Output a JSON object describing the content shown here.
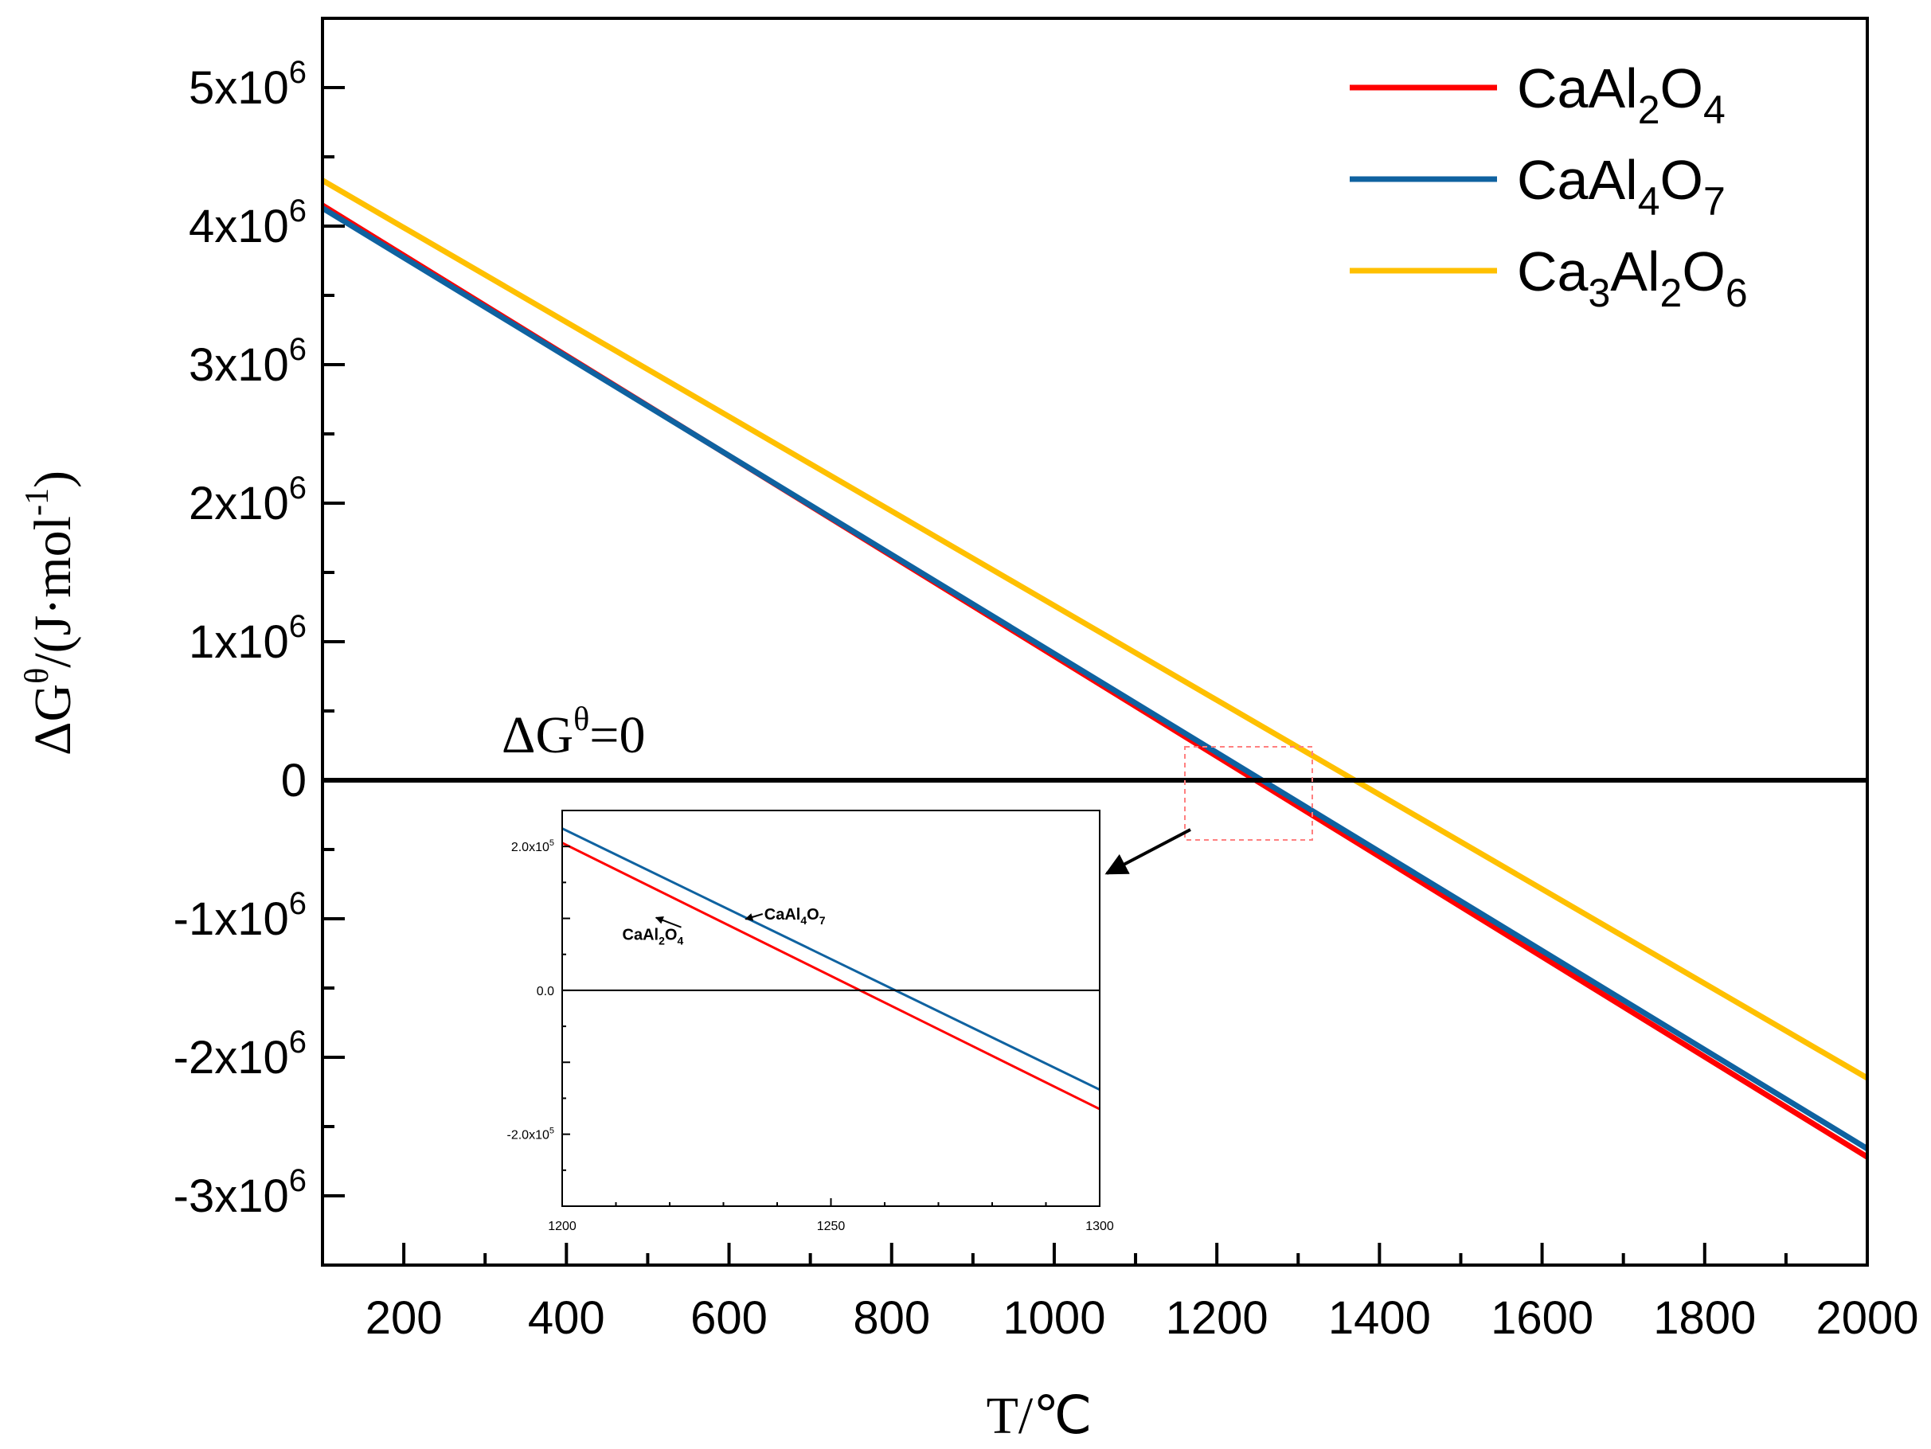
{
  "chart_data": [
    {
      "type": "line",
      "xlabel": "T/℃",
      "ylabel": "ΔG^θ/(J·mol^-1)",
      "xlim": [
        100,
        2000
      ],
      "ylim": [
        -3500000,
        5500000
      ],
      "xticks": [
        200,
        400,
        600,
        800,
        1000,
        1200,
        1400,
        1600,
        1800,
        2000
      ],
      "yticks": [
        {
          "value": 5000000,
          "mant": "5x10",
          "exp": "6"
        },
        {
          "value": 4000000,
          "mant": "4x10",
          "exp": "6"
        },
        {
          "value": 3000000,
          "mant": "3x10",
          "exp": "6"
        },
        {
          "value": 2000000,
          "mant": "2x10",
          "exp": "6"
        },
        {
          "value": 1000000,
          "mant": "1x10",
          "exp": "6"
        },
        {
          "value": 0,
          "mant": "0",
          "exp": ""
        },
        {
          "value": -1000000,
          "mant": "-1x10",
          "exp": "6"
        },
        {
          "value": -2000000,
          "mant": "-2x10",
          "exp": "6"
        },
        {
          "value": -3000000,
          "mant": "-3x10",
          "exp": "6"
        }
      ],
      "series": [
        {
          "name": "CaAl2O4",
          "label_parts": [
            [
              "CaAl",
              ""
            ],
            [
              "2",
              "sub"
            ],
            [
              "O",
              ""
            ],
            [
              "4",
              "sub"
            ]
          ],
          "color": "#ff0000",
          "x": [
            100,
            2000
          ],
          "y": [
            4150000,
            -2720000
          ]
        },
        {
          "name": "CaAl4O7",
          "label_parts": [
            [
              "CaAl",
              ""
            ],
            [
              "4",
              "sub"
            ],
            [
              "O",
              ""
            ],
            [
              "7",
              "sub"
            ]
          ],
          "color": "#0f62a0",
          "x": [
            100,
            2000
          ],
          "y": [
            4130000,
            -2660000
          ]
        },
        {
          "name": "Ca3Al2O6",
          "label_parts": [
            [
              "Ca",
              ""
            ],
            [
              "3",
              "sub"
            ],
            [
              "Al",
              ""
            ],
            [
              "2",
              "sub"
            ],
            [
              "O",
              ""
            ],
            [
              "6",
              "sub"
            ]
          ],
          "color": "#ffc000",
          "x": [
            100,
            2000
          ],
          "y": [
            4330000,
            -2150000
          ]
        }
      ],
      "reference_line": {
        "y": 0,
        "label_prefix": "ΔG",
        "label_sup": "θ",
        "label_suffix": "=0"
      },
      "legend": "top-right"
    },
    {
      "type": "line",
      "role": "inset",
      "xlim": [
        1200,
        1300
      ],
      "ylim": [
        -300000,
        250000
      ],
      "xticks": [
        {
          "value": 1200,
          "label": "1200"
        },
        {
          "value": 1250,
          "label": "1250"
        },
        {
          "value": 1300,
          "label": "1300"
        }
      ],
      "yticks": [
        {
          "value": 200000,
          "mant": "2.0x10",
          "exp": "5"
        },
        {
          "value": 0,
          "mant": "0.0",
          "exp": ""
        },
        {
          "value": -200000,
          "mant": "-2.0x10",
          "exp": "5"
        }
      ],
      "series": [
        {
          "name": "CaAl2O4",
          "color": "#ff0000",
          "x": [
            1200,
            1300
          ],
          "y": [
            205000,
            -165000
          ]
        },
        {
          "name": "CaAl4O7",
          "color": "#0f62a0",
          "x": [
            1200,
            1300
          ],
          "y": [
            225000,
            -138000
          ]
        }
      ],
      "annotations": [
        {
          "parts": [
            [
              "CaAl",
              ""
            ],
            [
              "4",
              "sub"
            ],
            [
              "O",
              ""
            ],
            [
              "7",
              "sub"
            ]
          ],
          "target_x": 1235,
          "target_y": 110000,
          "text_x": 1237,
          "text_y": 115000
        },
        {
          "parts": [
            [
              "CaAl",
              ""
            ],
            [
              "2",
              "sub"
            ],
            [
              "O",
              ""
            ],
            [
              "4",
              "sub"
            ]
          ],
          "target_x": 1217,
          "target_y": 110000,
          "text_x": 1210,
          "text_y": 70000
        }
      ]
    }
  ]
}
